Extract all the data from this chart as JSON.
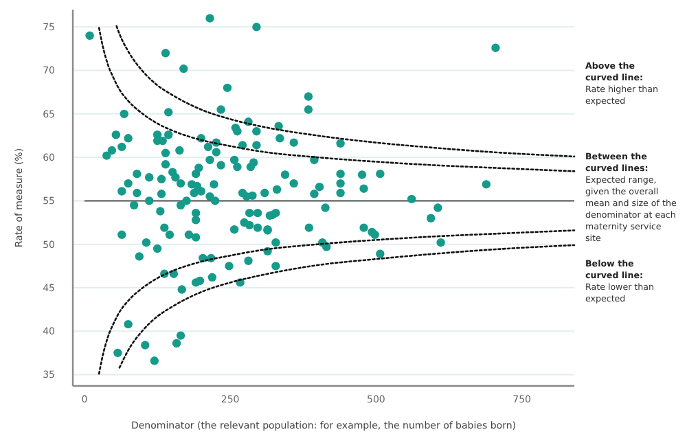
{
  "chart_data": {
    "type": "scatter",
    "xlabel": "Denominator (the relevant population: for example, the number of babies born)",
    "ylabel": "Rate of measure (%)",
    "xlim": [
      -20,
      840
    ],
    "ylim": [
      33.7,
      77
    ],
    "xticks": [
      0,
      250,
      500,
      750
    ],
    "yticks": [
      35,
      40,
      45,
      50,
      55,
      60,
      65,
      70,
      75
    ],
    "grid": "y",
    "marker": "circle",
    "ref_lines": [
      {
        "axis": "y",
        "value": 55,
        "color": "#555555",
        "line_style": "solid"
      }
    ],
    "annotations": [
      "Above the curved line:",
      "Rate higher than expected",
      "Between the curved lines:",
      "Expected range, given the overall mean and size of the denominator at each maternity service site",
      "Below the curved line:",
      "Rate lower than expected"
    ],
    "series": [
      {
        "color": "#169b8b",
        "x": [
          9,
          215,
          295,
          139,
          170,
          245,
          68,
          144,
          234,
          384,
          384,
          38,
          47,
          54,
          64,
          75,
          125,
          125,
          134,
          144,
          139,
          139,
          163,
          200,
          226,
          226,
          212,
          215,
          234,
          259,
          262,
          257,
          262,
          271,
          281,
          295,
          295,
          290,
          285,
          333,
          335,
          359,
          394,
          439,
          90,
          111,
          75,
          64,
          90,
          85,
          111,
          132,
          132,
          151,
          156,
          165,
          165,
          175,
          184,
          191,
          196,
          188,
          200,
          193,
          215,
          224,
          222,
          271,
          278,
          288,
          309,
          330,
          344,
          359,
          394,
          403,
          413,
          439,
          439,
          439,
          130,
          137,
          146,
          64,
          191,
          191,
          257,
          283,
          297,
          314,
          318,
          323,
          328,
          385,
          705,
          476,
          479,
          507,
          561,
          606,
          594,
          689,
          479,
          493,
          498,
          408,
          415,
          611,
          507,
          94,
          106,
          125,
          137,
          153,
          167,
          75,
          57,
          104,
          120,
          158,
          165,
          179,
          191,
          191,
          198,
          203,
          217,
          219,
          248,
          267,
          274,
          283,
          297,
          314,
          281,
          314,
          328,
          328
        ],
        "values": [
          74,
          76,
          75,
          72,
          70.2,
          68,
          65,
          65.2,
          65.5,
          67,
          65.5,
          60.2,
          60.8,
          62.6,
          61.2,
          62.2,
          62.6,
          61.9,
          61.9,
          62.6,
          60.5,
          59.2,
          60.8,
          62.2,
          61.7,
          60.6,
          61.2,
          59.7,
          59.1,
          63.4,
          63,
          59.7,
          58.9,
          61.4,
          64.1,
          63,
          61.4,
          59.4,
          58.9,
          63.6,
          62.2,
          61.7,
          59.7,
          61.6,
          58.1,
          57.7,
          57,
          56.1,
          55.9,
          54.5,
          55,
          55.8,
          57.5,
          58.3,
          57.7,
          57,
          54.5,
          55,
          56.9,
          58.1,
          58.8,
          55.9,
          56.1,
          56.7,
          55.5,
          55,
          56.9,
          55.9,
          55.5,
          55.6,
          55.9,
          56.3,
          58,
          57,
          55.8,
          56.6,
          54.2,
          58.1,
          57,
          55.9,
          53.8,
          51.9,
          51.1,
          51.1,
          53.6,
          52.8,
          51.7,
          53.6,
          53.6,
          51.7,
          53.3,
          53.4,
          53.6,
          51.9,
          72.6,
          58,
          56.4,
          58.1,
          55.2,
          54.2,
          53,
          56.9,
          51.9,
          51.4,
          51.1,
          50.2,
          49.7,
          50.2,
          48.9,
          48.6,
          50.2,
          49.5,
          46.6,
          46.6,
          44.8,
          40.8,
          37.5,
          38.4,
          36.6,
          38.6,
          39.5,
          51.1,
          50.8,
          45.6,
          45.8,
          48.4,
          48.4,
          46.2,
          47.5,
          45.6,
          52.5,
          52.2,
          51.9,
          51.6,
          48.1,
          49.2,
          50.2,
          47.5
        ]
      },
      {
        "type": "line",
        "marker": "none",
        "color": "#111111",
        "line_style": "dotted",
        "x": [
          25,
          30,
          40,
          50,
          60,
          75,
          100,
          125,
          150,
          200,
          250,
          300,
          400,
          500,
          600,
          700,
          840
        ],
        "values": [
          74.9,
          73.2,
          70.7,
          69.1,
          67.8,
          66.5,
          65,
          63.9,
          63.1,
          62,
          61.3,
          60.7,
          60,
          59.5,
          59.1,
          58.8,
          58.4
        ]
      },
      {
        "type": "line",
        "marker": "none",
        "color": "#111111",
        "line_style": "dotted",
        "x": [
          25,
          30,
          40,
          50,
          60,
          75,
          100,
          125,
          150,
          200,
          250,
          300,
          400,
          500,
          600,
          700,
          840
        ],
        "values": [
          35.1,
          36.8,
          39.3,
          40.9,
          42.2,
          43.5,
          45,
          46.1,
          46.9,
          48,
          48.7,
          49.3,
          50,
          50.5,
          50.9,
          51.2,
          51.6
        ]
      },
      {
        "type": "line",
        "marker": "none",
        "color": "#111111",
        "line_style": "dotted",
        "x": [
          55,
          60,
          75,
          100,
          125,
          150,
          200,
          250,
          300,
          400,
          500,
          600,
          700,
          840
        ],
        "values": [
          75.1,
          74.2,
          72.2,
          69.9,
          68.3,
          67.2,
          65.5,
          64.4,
          63.6,
          62.5,
          61.7,
          61.1,
          60.6,
          60.1
        ]
      },
      {
        "type": "line",
        "marker": "none",
        "color": "#111111",
        "line_style": "dotted",
        "x": [
          60,
          75,
          100,
          125,
          150,
          200,
          250,
          300,
          400,
          500,
          600,
          700,
          840
        ],
        "values": [
          35.8,
          37.8,
          40.1,
          41.7,
          42.8,
          44.5,
          45.6,
          46.4,
          47.6,
          48.3,
          48.9,
          49.4,
          49.9
        ]
      }
    ]
  }
}
